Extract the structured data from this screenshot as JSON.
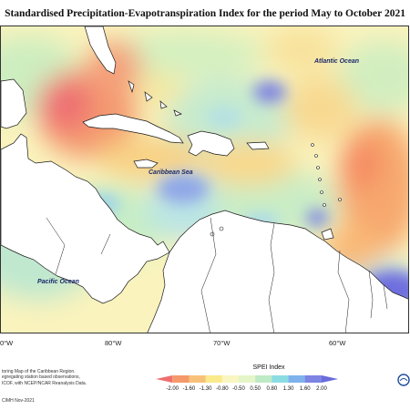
{
  "title": "Standardised Precipitation-Evapotranspiration Index for the period May to October 2021",
  "map": {
    "ocean_labels": {
      "atlantic": "Atlantic Ocean",
      "caribbean": "Caribbean Sea",
      "pacific": "Pacific Ocean"
    },
    "longitude_labels": [
      "0°W",
      "80°W",
      "70°W",
      "60°W"
    ]
  },
  "legend": {
    "title": "SPEI Index",
    "ticks": [
      "-2.00",
      "-1.60",
      "-1.30",
      "-0.80",
      "-0.50",
      "0.50",
      "0.80",
      "1.30",
      "1.60",
      "2.00"
    ],
    "colors": [
      "#ef6e6e",
      "#f5996a",
      "#f8c17a",
      "#faea8c",
      "#f9f6c2",
      "#e4f5c8",
      "#bfeac6",
      "#8cdce4",
      "#7fb2ec",
      "#7d84e3",
      "#6a6bdc"
    ]
  },
  "footer": {
    "lines": [
      "toring Map of the Caribbean Region.",
      "egregating station based observations,",
      "ICOF, with NCEP/NCAR Reanalysis Data."
    ],
    "date": "CIMH Nov-2021"
  }
}
